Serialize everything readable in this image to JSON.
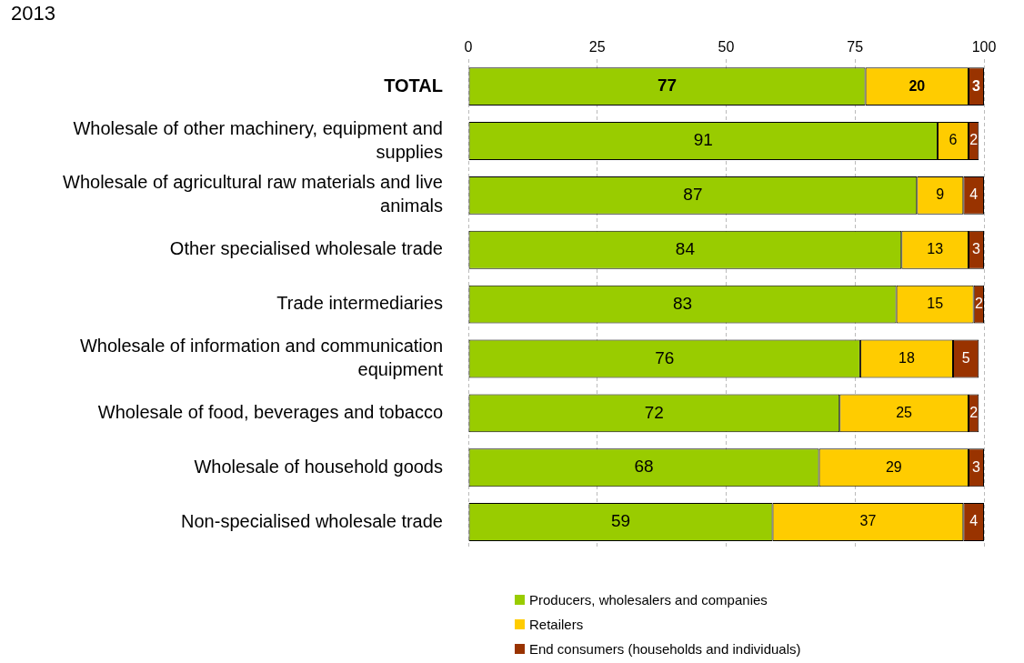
{
  "chart_data": {
    "type": "bar",
    "orientation": "horizontal",
    "stacked": true,
    "title": "2013",
    "categories": [
      "TOTAL",
      "Wholesale of other machinery, equipment and supplies",
      "Wholesale of agricultural raw materials and live animals",
      "Other specialised wholesale trade",
      "Trade intermediaries",
      "Wholesale of information and communication equipment",
      "Wholesale of food, beverages and tobacco",
      "Wholesale of household goods",
      "Non-specialised wholesale trade"
    ],
    "series": [
      {
        "name": "Producers, wholesalers and companies",
        "color": "#99cc00",
        "values": [
          77,
          91,
          87,
          84,
          83,
          76,
          72,
          68,
          59
        ]
      },
      {
        "name": "Retailers",
        "color": "#ffcc00",
        "values": [
          20,
          6,
          9,
          13,
          15,
          18,
          25,
          29,
          37
        ]
      },
      {
        "name": "End consumers (households and individuals)",
        "color": "#993300",
        "values": [
          3,
          2,
          4,
          3,
          2,
          5,
          2,
          3,
          4
        ]
      }
    ],
    "xlim": [
      0,
      100
    ],
    "xticks": [
      0,
      25,
      50,
      75,
      100
    ],
    "grid": "x",
    "legend": "bottom",
    "data_labels": true
  }
}
